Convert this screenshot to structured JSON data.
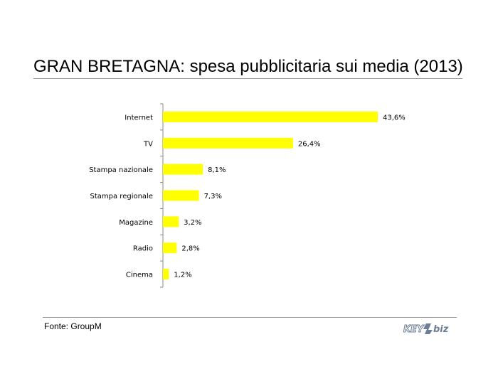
{
  "chart_data": {
    "type": "bar",
    "orientation": "horizontal",
    "title": "GRAN BRETAGNA: spesa pubblicitaria sui media (2013)",
    "categories": [
      "Internet",
      "TV",
      "Stampa nazionale",
      "Stampa regionale",
      "Magazine",
      "Radio",
      "Cinema"
    ],
    "values": [
      43.6,
      26.4,
      8.1,
      7.3,
      3.2,
      2.8,
      1.2
    ],
    "data_labels": [
      "43,6%",
      "26,4%",
      "8,1%",
      "7,3%",
      "3,2%",
      "2,8%",
      "1,2%"
    ],
    "unit": "%",
    "xlabel": "",
    "ylabel": "",
    "bar_color": "#ffff00",
    "grid": false,
    "legend": "none"
  },
  "footer": {
    "source": "Fonte: GroupM",
    "logo_text": "KEY4biz"
  }
}
